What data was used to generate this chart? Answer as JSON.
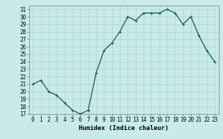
{
  "x": [
    0,
    1,
    2,
    3,
    4,
    5,
    6,
    7,
    8,
    9,
    10,
    11,
    12,
    13,
    14,
    15,
    16,
    17,
    18,
    19,
    20,
    21,
    22,
    23
  ],
  "y": [
    21,
    21.5,
    20,
    19.5,
    18.5,
    17.5,
    17,
    17.5,
    22.5,
    25.5,
    26.5,
    28,
    30,
    29.5,
    30.5,
    30.5,
    30.5,
    31,
    30.5,
    29,
    30,
    27.5,
    25.5,
    24
  ],
  "line_color": "#1a5f5a",
  "marker": "+",
  "marker_size": 3,
  "bg_color": "#c8eaea",
  "grid_color": "#aad4d4",
  "xlabel": "Humidex (Indice chaleur)",
  "ylabel": "",
  "title": "",
  "xlim": [
    -0.5,
    23.5
  ],
  "ylim": [
    17,
    31.5
  ],
  "yticks": [
    17,
    18,
    19,
    20,
    21,
    22,
    23,
    24,
    25,
    26,
    27,
    28,
    29,
    30,
    31
  ],
  "xticks": [
    0,
    1,
    2,
    3,
    4,
    5,
    6,
    7,
    8,
    9,
    10,
    11,
    12,
    13,
    14,
    15,
    16,
    17,
    18,
    19,
    20,
    21,
    22,
    23
  ],
  "tick_fontsize": 5.5,
  "label_fontsize": 6.5,
  "line_width": 1.0,
  "marker_edge_width": 0.8
}
